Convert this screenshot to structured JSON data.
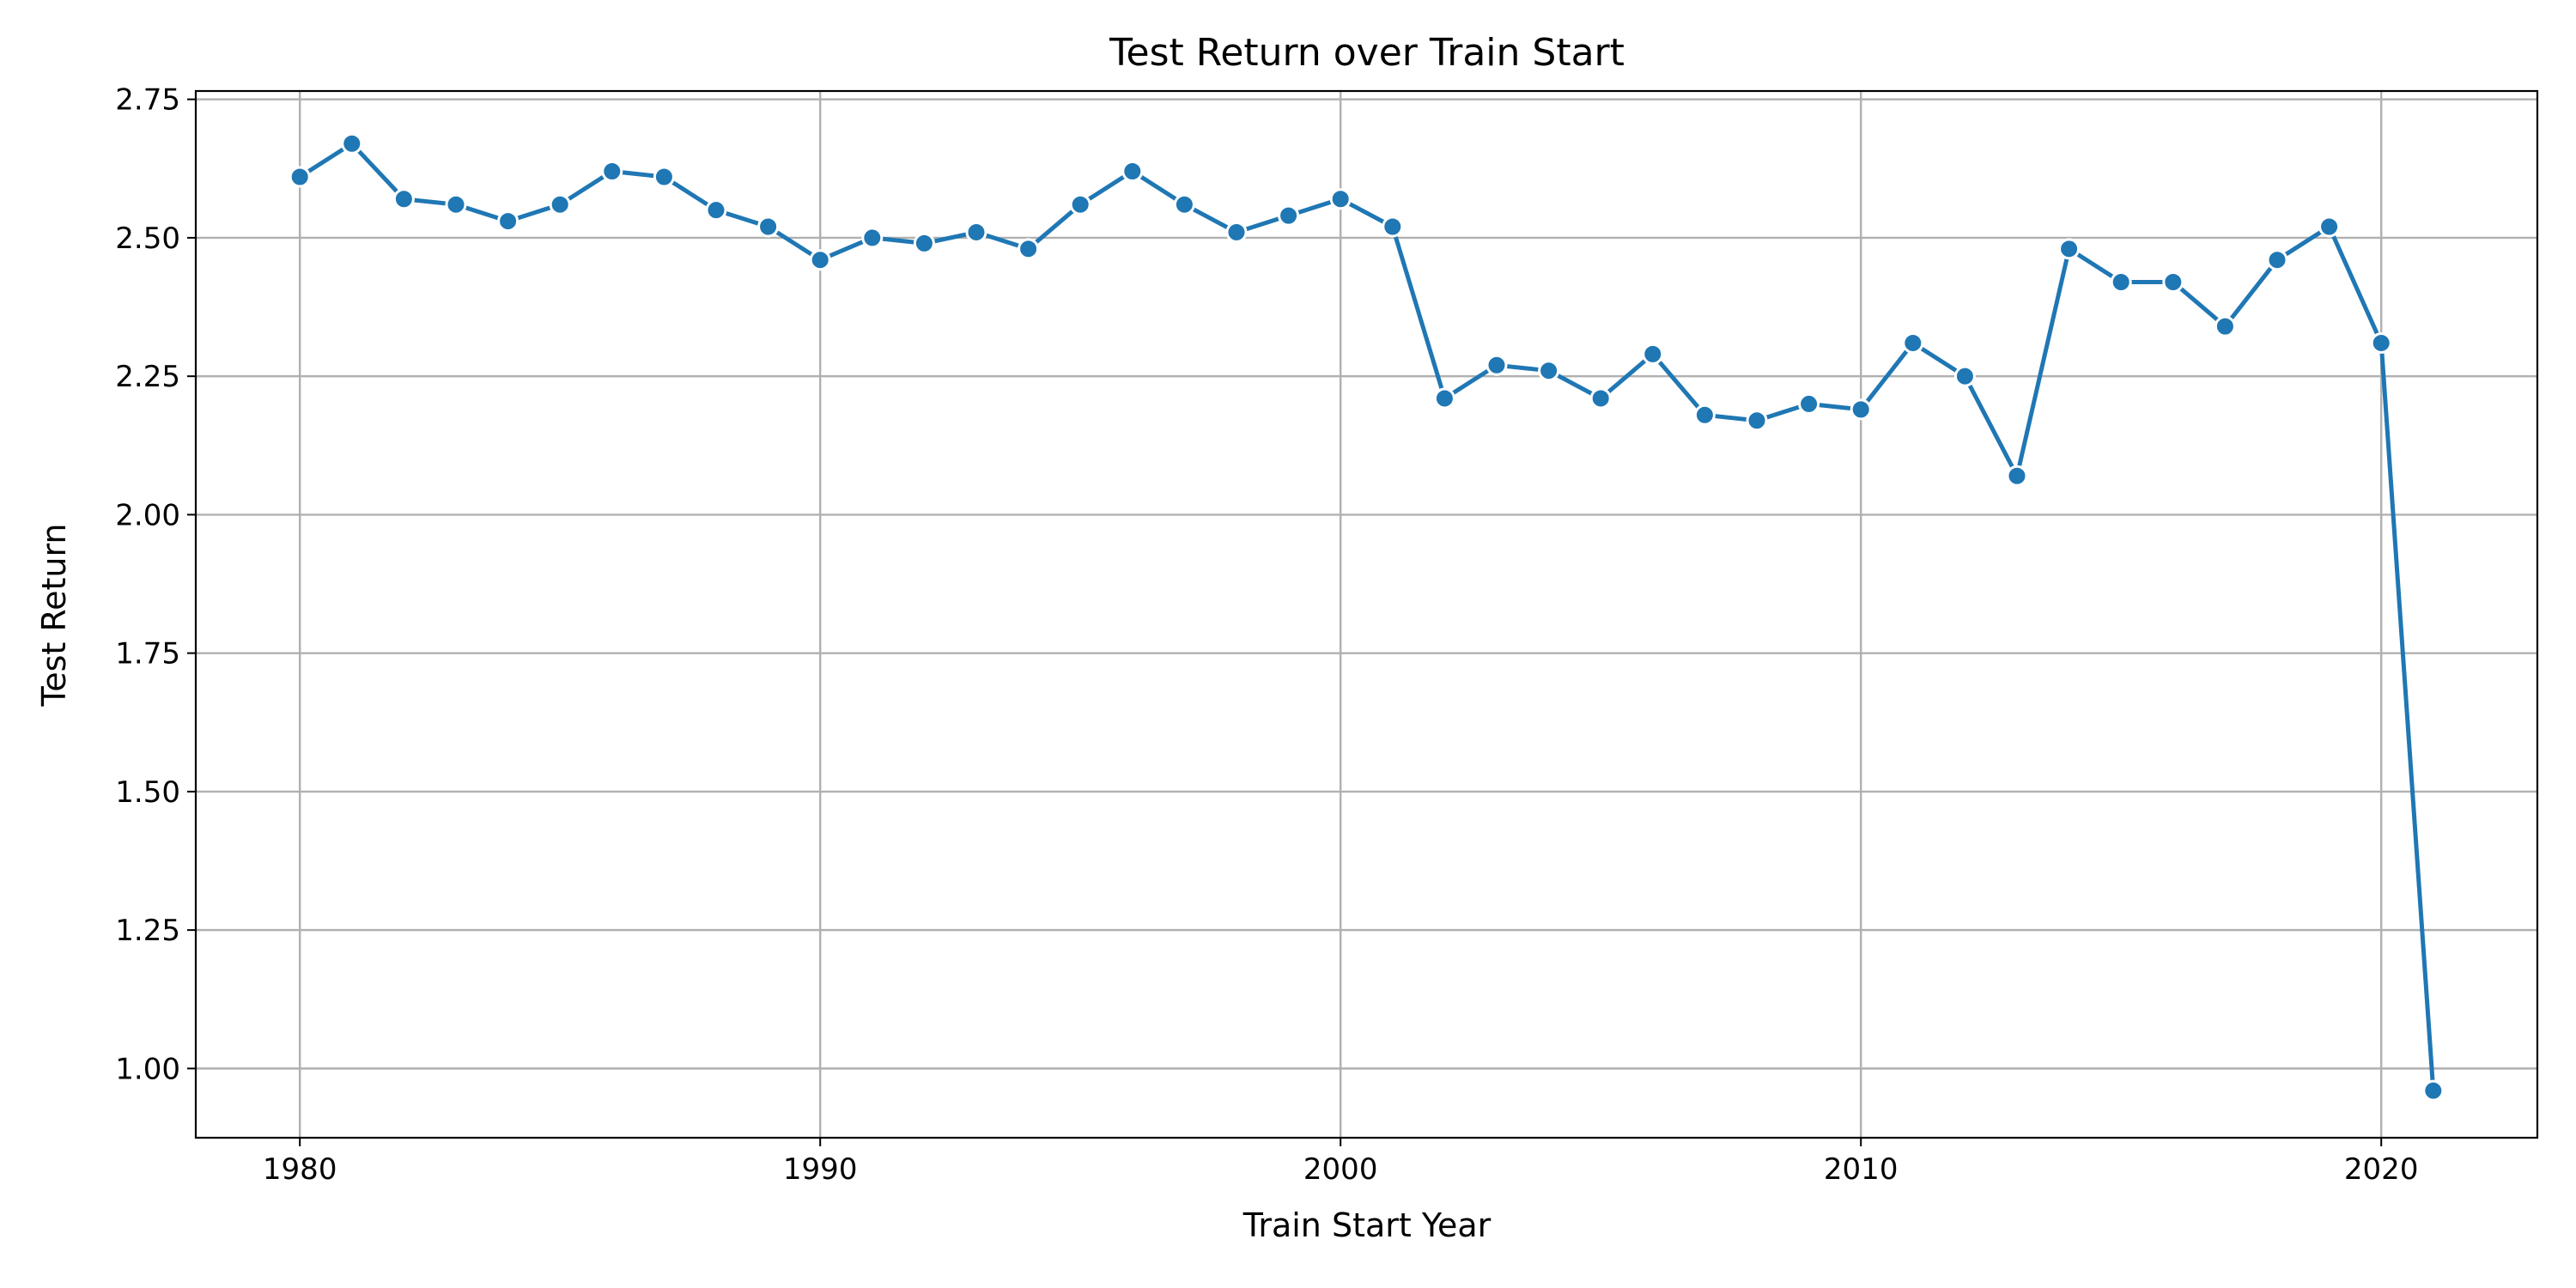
{
  "chart_data": {
    "type": "line",
    "title": "Test Return over Train Start",
    "xlabel": "Train Start Year",
    "ylabel": "Test Return",
    "xlim": [
      1978,
      2023
    ],
    "ylim": [
      0.875,
      2.765
    ],
    "x_ticks": [
      1980,
      1990,
      2000,
      2010,
      2020
    ],
    "y_ticks": [
      1.0,
      1.25,
      1.5,
      1.75,
      2.0,
      2.25,
      2.5,
      2.75
    ],
    "x_tick_labels": [
      "1980",
      "1990",
      "2000",
      "2010",
      "2020"
    ],
    "y_tick_labels": [
      "1.00",
      "1.25",
      "1.50",
      "1.75",
      "2.00",
      "2.25",
      "2.50",
      "2.75"
    ],
    "grid": true,
    "legend": false,
    "marker": "circle",
    "series": [
      {
        "color": "#1f77b4",
        "x": [
          1980,
          1981,
          1982,
          1983,
          1984,
          1985,
          1986,
          1987,
          1988,
          1989,
          1990,
          1991,
          1992,
          1993,
          1994,
          1995,
          1996,
          1997,
          1998,
          1999,
          2000,
          2001,
          2002,
          2003,
          2004,
          2005,
          2006,
          2007,
          2008,
          2009,
          2010,
          2011,
          2012,
          2013,
          2014,
          2015,
          2016,
          2017,
          2018,
          2019,
          2020,
          2021
        ],
        "y": [
          2.61,
          2.67,
          2.57,
          2.56,
          2.53,
          2.56,
          2.62,
          2.61,
          2.55,
          2.52,
          2.46,
          2.5,
          2.49,
          2.51,
          2.48,
          2.56,
          2.62,
          2.56,
          2.51,
          2.54,
          2.57,
          2.52,
          2.21,
          2.27,
          2.26,
          2.21,
          2.29,
          2.18,
          2.17,
          2.2,
          2.19,
          2.31,
          2.25,
          2.07,
          2.48,
          2.42,
          2.42,
          2.34,
          2.46,
          2.52,
          2.31,
          0.96
        ]
      }
    ]
  }
}
